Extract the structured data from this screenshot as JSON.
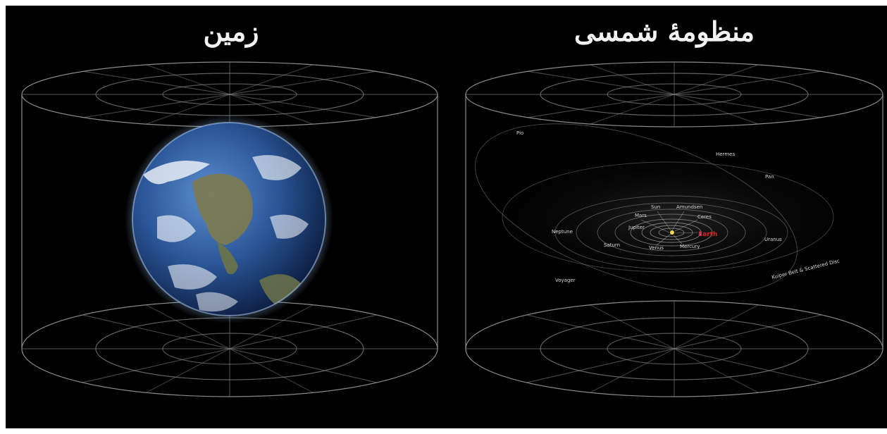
{
  "panels": {
    "earth": {
      "title": "زمین"
    },
    "solar_system": {
      "title": "منظومهٔ شمسی",
      "labels": {
        "pio": "Pio",
        "hermes": "Hermes",
        "pan": "Pan",
        "sun": "Sun",
        "amundsen": "Amundsen",
        "mars": "Mars",
        "ceres": "Ceres",
        "jupiter": "Jupiter",
        "earth": "Earth",
        "neptune": "Neptune",
        "saturn": "Saturn",
        "venus": "Venus",
        "mercury": "Mercury",
        "uranus": "Uranus",
        "kuiper": "Kuiper Belt & Scattered Disc",
        "voyager": "Voyager"
      }
    }
  },
  "colors": {
    "background": "#000000",
    "grid": "#8a8a8a",
    "earth_label": "#e02020"
  }
}
